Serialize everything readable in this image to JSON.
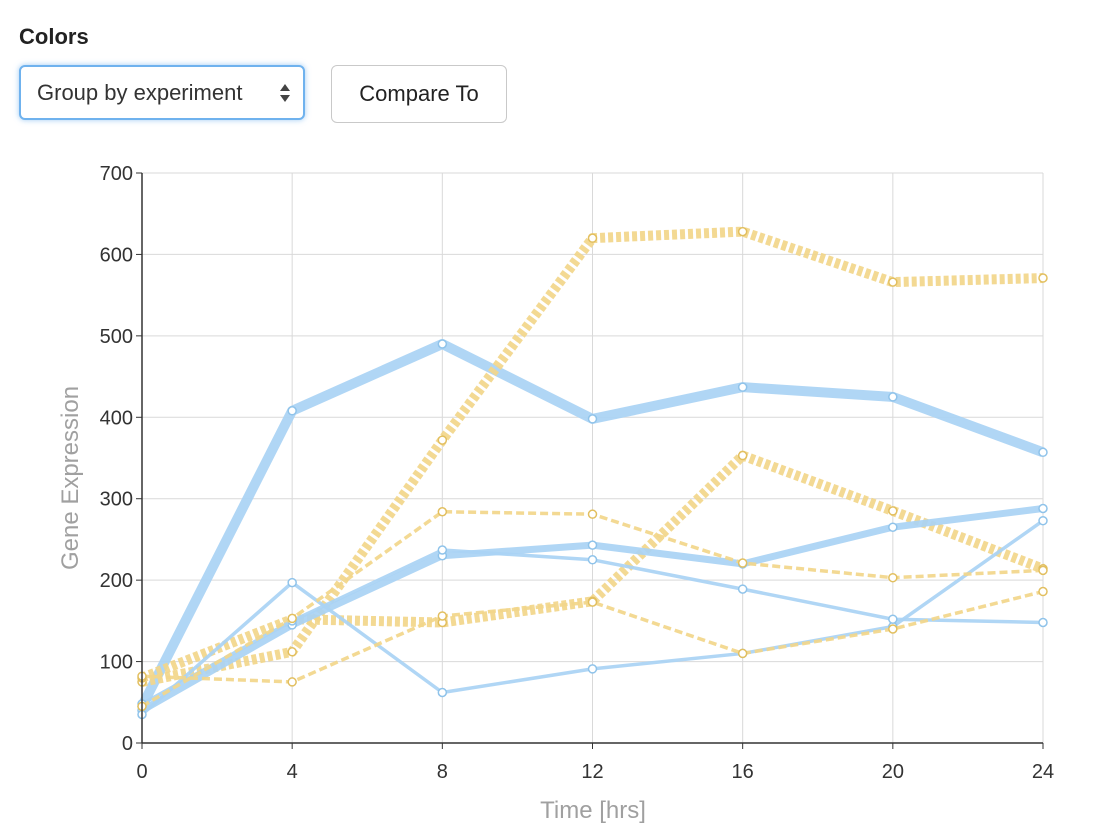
{
  "controls": {
    "colors_label": "Colors",
    "group_select": {
      "selected": "Group by experiment"
    },
    "compare_button": "Compare To"
  },
  "colors": {
    "series_a": "#a9d3f4",
    "series_b": "#f2d68a",
    "grid": "#d9d9d9",
    "axis": "#333333",
    "select_focus": "#6fb2ee"
  },
  "chart_data": {
    "type": "line",
    "title": "",
    "xlabel": "Time [hrs]",
    "ylabel": "Gene Expression",
    "xlim": [
      0,
      24
    ],
    "ylim": [
      0,
      700
    ],
    "xticks": [
      0,
      4,
      8,
      12,
      16,
      20,
      24
    ],
    "yticks": [
      0,
      100,
      200,
      300,
      400,
      500,
      600,
      700
    ],
    "grid": true,
    "series": [
      {
        "group": "blue",
        "color": "#a9d3f4",
        "weight": "thick",
        "dashed": false,
        "x": [
          0,
          4,
          8,
          12,
          16,
          20,
          24
        ],
        "y": [
          45,
          408,
          490,
          398,
          437,
          425,
          357
        ]
      },
      {
        "group": "blue",
        "color": "#a9d3f4",
        "weight": "medium",
        "dashed": false,
        "x": [
          0,
          4,
          8,
          12,
          16,
          20,
          24
        ],
        "y": [
          40,
          145,
          230,
          243,
          220,
          265,
          288
        ]
      },
      {
        "group": "blue",
        "color": "#a9d3f4",
        "weight": "thin",
        "dashed": false,
        "x": [
          0,
          4,
          8,
          12,
          16,
          20,
          24
        ],
        "y": [
          35,
          197,
          62,
          91,
          110,
          143,
          273
        ]
      },
      {
        "group": "blue",
        "color": "#a9d3f4",
        "weight": "thin",
        "dashed": false,
        "x": [
          0,
          4,
          8,
          12,
          16,
          20,
          24
        ],
        "y": [
          48,
          150,
          237,
          225,
          189,
          152,
          148
        ]
      },
      {
        "group": "yellow",
        "color": "#f2d68a",
        "weight": "thick",
        "dashed": true,
        "x": [
          0,
          4,
          8,
          12,
          16,
          20,
          24
        ],
        "y": [
          75,
          112,
          372,
          620,
          628,
          566,
          571
        ]
      },
      {
        "group": "yellow",
        "color": "#f2d68a",
        "weight": "thick",
        "dashed": true,
        "x": [
          0,
          4,
          8,
          12,
          16,
          20,
          24
        ],
        "y": [
          80,
          152,
          148,
          174,
          353,
          285,
          214
        ]
      },
      {
        "group": "yellow",
        "color": "#f2d68a",
        "weight": "thin",
        "dashed": true,
        "x": [
          0,
          4,
          8,
          12,
          16,
          20,
          24
        ],
        "y": [
          82,
          75,
          156,
          173,
          110,
          140,
          186
        ]
      },
      {
        "group": "yellow",
        "color": "#f2d68a",
        "weight": "thin",
        "dashed": true,
        "x": [
          0,
          4,
          8,
          12,
          16,
          20,
          24
        ],
        "y": [
          45,
          153,
          284,
          281,
          221,
          203,
          212
        ]
      }
    ]
  }
}
